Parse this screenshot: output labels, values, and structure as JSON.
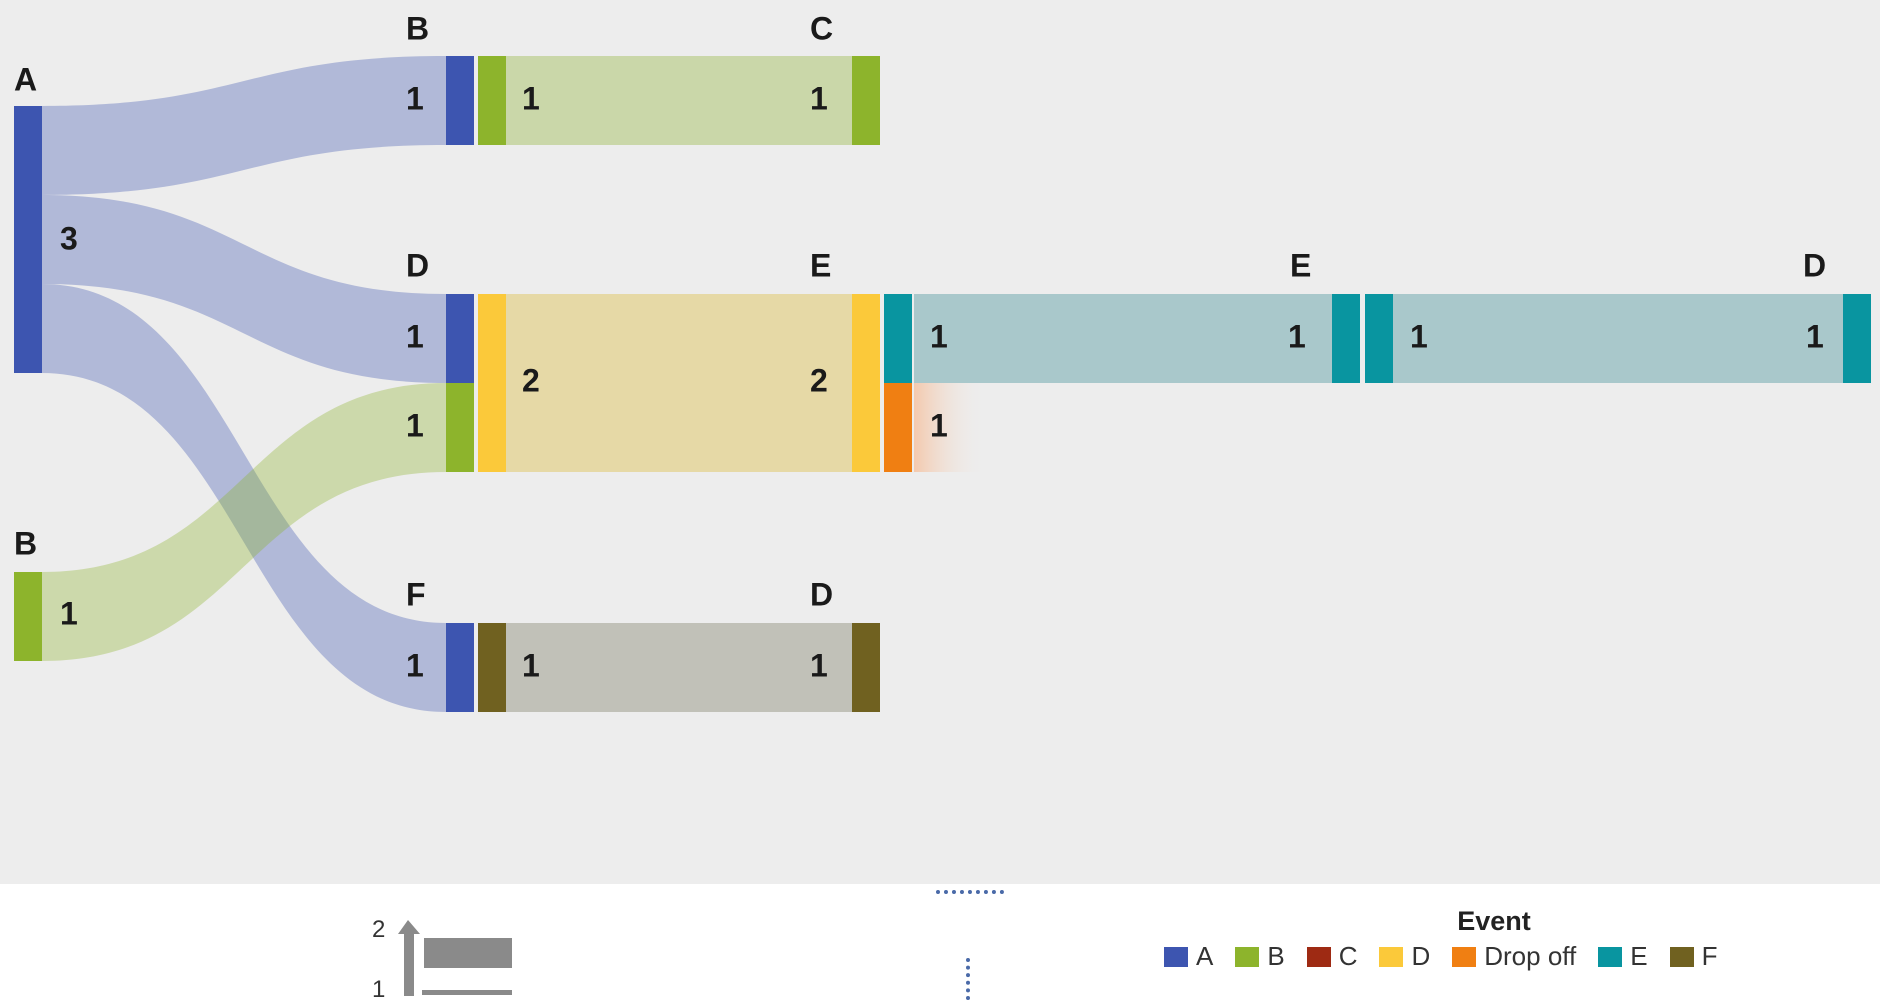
{
  "chart_data": {
    "type": "sankey",
    "legend": {
      "title": "Event",
      "items": [
        {
          "label": "A",
          "color": "#3d55b0"
        },
        {
          "label": "B",
          "color": "#8db42c"
        },
        {
          "label": "C",
          "color": "#9e2a13"
        },
        {
          "label": "D",
          "color": "#fbc93a"
        },
        {
          "label": "Drop off",
          "color": "#f07f12"
        },
        {
          "label": "E",
          "color": "#0995a0"
        },
        {
          "label": "F",
          "color": "#706120"
        }
      ]
    },
    "size_legend": {
      "labels": [
        "2",
        "1"
      ]
    },
    "nodes": [
      {
        "id": "A1",
        "event": "A",
        "label": "A",
        "step": 1,
        "value": 3
      },
      {
        "id": "B1",
        "event": "B",
        "label": "B",
        "step": 1,
        "value": 1
      },
      {
        "id": "B2",
        "event": "B",
        "label": "B",
        "step": 2,
        "value": 1
      },
      {
        "id": "D2",
        "event": "D",
        "label": "D",
        "step": 2,
        "value": 2
      },
      {
        "id": "F2",
        "event": "F",
        "label": "F",
        "step": 2,
        "value": 1
      },
      {
        "id": "C3",
        "event": "C",
        "label": "C",
        "step": 3,
        "value": 1
      },
      {
        "id": "E3",
        "event": "E",
        "label": "E",
        "step": 3,
        "value": 2
      },
      {
        "id": "D3",
        "event": "D",
        "label": "D",
        "step": 3,
        "value": 1
      },
      {
        "id": "E4",
        "event": "E",
        "label": "E",
        "step": 4,
        "value": 1
      },
      {
        "id": "D5",
        "event": "D",
        "label": "D",
        "step": 5,
        "value": 1
      }
    ],
    "links": [
      {
        "source": "A1",
        "target": "B2",
        "value": 1
      },
      {
        "source": "A1",
        "target": "D2",
        "value": 1
      },
      {
        "source": "A1",
        "target": "F2",
        "value": 1
      },
      {
        "source": "B1",
        "target": "D2",
        "value": 1
      },
      {
        "source": "B2",
        "target": "C3",
        "value": 1
      },
      {
        "source": "D2",
        "target": "E3",
        "value": 2
      },
      {
        "source": "F2",
        "target": "D3",
        "value": 1
      },
      {
        "source": "E3",
        "target": "E4",
        "value": 1
      },
      {
        "source": "E3",
        "target": "Drop off",
        "value": 1
      },
      {
        "source": "E4",
        "target": "D5",
        "value": 1
      }
    ]
  }
}
